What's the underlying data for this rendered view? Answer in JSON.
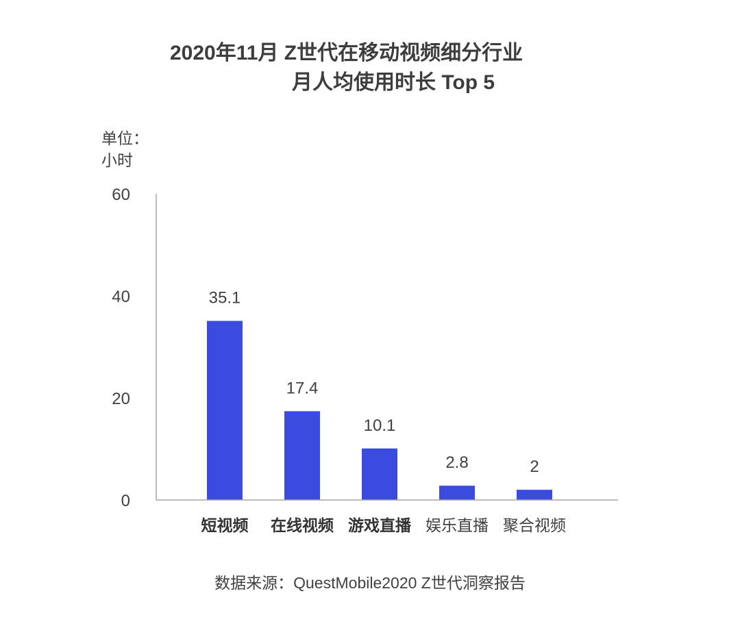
{
  "chart_data": {
    "type": "bar",
    "title_line1": "2020年11月 Z世代在移动视频细分行业",
    "title_line2": "月人均使用时长 Top 5",
    "unit_line1": "单位：",
    "unit_line2": "小时",
    "categories": [
      "短视频",
      "在线视频",
      "游戏直播",
      "娱乐直播",
      "聚合视频"
    ],
    "category_bold": [
      true,
      true,
      true,
      false,
      false
    ],
    "values": [
      35.1,
      17.4,
      10.1,
      2.8,
      2
    ],
    "data_labels": [
      "35.1",
      "17.4",
      "10.1",
      "2.8",
      "2"
    ],
    "yticks": [
      0,
      20,
      40,
      60
    ],
    "ylim": [
      0,
      60
    ],
    "grid": false,
    "bar_color": "#3c4bdf",
    "axis_color": "#a6a6a6",
    "source": "数据来源：QuestMobile2020 Z世代洞察报告"
  }
}
